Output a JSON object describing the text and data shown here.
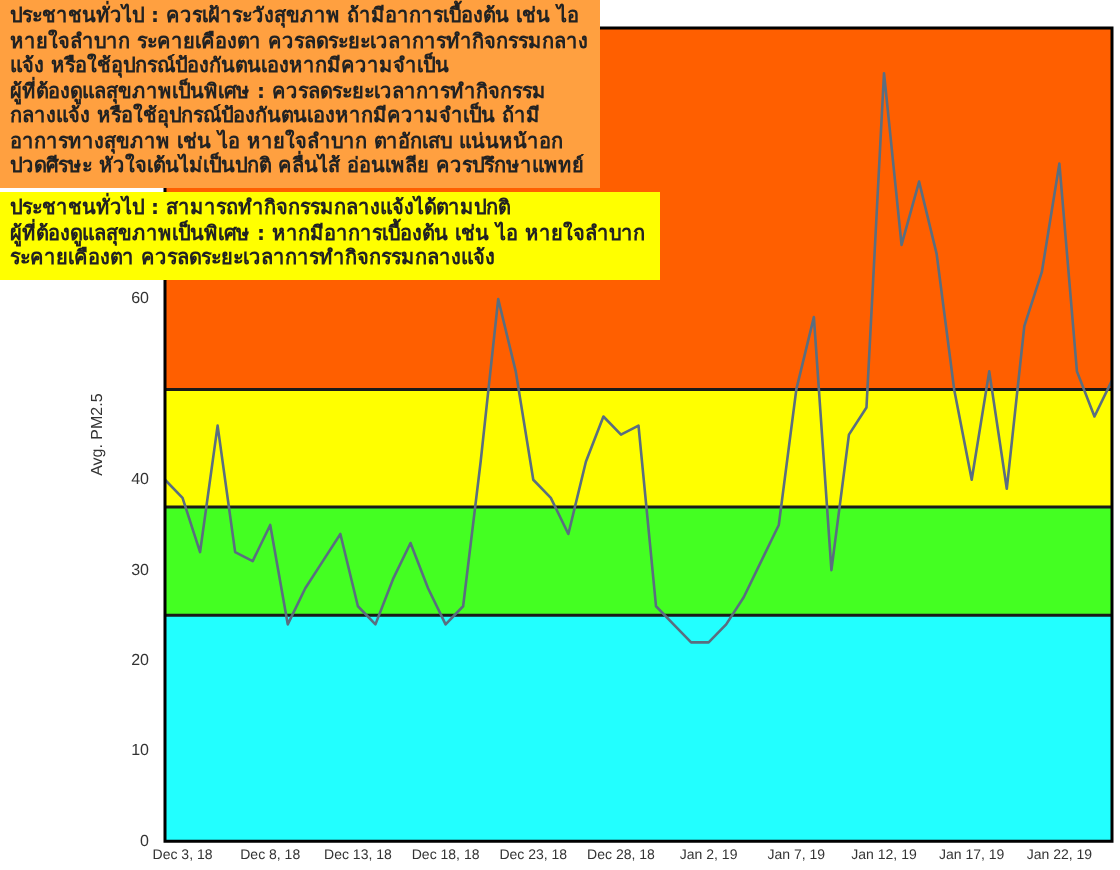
{
  "chart_data": {
    "type": "line",
    "ylabel": "Avg. PM2.5",
    "categories": [
      null,
      "Dec 3, 18",
      null,
      null,
      null,
      null,
      "Dec 8, 18",
      null,
      null,
      null,
      null,
      "Dec 13, 18",
      null,
      null,
      null,
      null,
      "Dec 18, 18",
      null,
      null,
      null,
      null,
      "Dec 23, 18",
      null,
      null,
      null,
      null,
      "Dec 28, 18",
      null,
      null,
      null,
      null,
      "Jan 2, 19",
      null,
      null,
      null,
      null,
      "Jan 7, 19",
      null,
      null,
      null,
      null,
      "Jan 12, 19",
      null,
      null,
      null,
      null,
      "Jan 17, 19",
      null,
      null,
      null,
      null,
      "Jan 22, 19",
      null,
      null,
      null
    ],
    "series": [
      {
        "color": "#5a6e80",
        "values": [
          40,
          38,
          32,
          46,
          32,
          31,
          35,
          24,
          28,
          31,
          34,
          26,
          24,
          29,
          33,
          28,
          24,
          26,
          42,
          60,
          52,
          40,
          38,
          34,
          42,
          47,
          45,
          46,
          26,
          24,
          22,
          22,
          24,
          27,
          31,
          35,
          50,
          58,
          30,
          45,
          48,
          85,
          66,
          73,
          65,
          50,
          40,
          52,
          39,
          57,
          63,
          75,
          52,
          47,
          51
        ]
      }
    ],
    "ylim": [
      0,
      90
    ],
    "yticks": [
      0,
      10,
      20,
      30,
      40,
      60
    ],
    "bands": [
      {
        "axis": "y",
        "from": 0,
        "to": 25,
        "color": "#22ffff"
      },
      {
        "axis": "y",
        "from": 25,
        "to": 37,
        "color": "#44ff22"
      },
      {
        "axis": "y",
        "from": 37,
        "to": 50,
        "color": "#ffff00"
      },
      {
        "axis": "y",
        "from": 50,
        "to": 90,
        "color": "#ff5f00"
      }
    ],
    "ref_lines": [
      {
        "axis": "y",
        "value": 25,
        "color": "#1a1a1a"
      },
      {
        "axis": "y",
        "value": 37,
        "color": "#1a1a1a"
      },
      {
        "axis": "y",
        "value": 50,
        "color": "#1a1a1a"
      }
    ],
    "annotations": [
      "ประชาชนทั่วไป : ควรเฝ้าระวังสุขภาพ ถ้ามีอาการเบื้องต้น เช่น ไอ หายใจลำบาก ระคายเคืองตา ควรลดระยะเวลาการทำกิจกรรมกลางแจ้ง หรือใช้อุปกรณ์ป้องกันตนเองหากมีความจำเป็น",
      "ผู้ที่ต้องดูแลสุขภาพเป็นพิเศษ : ควรลดระยะเวลาการทำกิจกรรมกลางแจ้ง หรือใช้อุปกรณ์ป้องกันตนเองหากมีความจำเป็น ถ้ามีอาการทางสุขภาพ เช่น ไอ หายใจลำบาก ตาอักเสบ แน่นหน้าอก ปวดศีรษะ หัวใจเต้นไม่เป็นปกติ คลื่นไส้ อ่อนเพลีย ควรปรึกษาแพทย์",
      "ประชาชนทั่วไป : สามารถทำกิจกรรมกลางแจ้งได้ตามปกติ",
      "ผู้ที่ต้องดูแลสุขภาพเป็นพิเศษ : หากมีอาการเบื้องต้น เช่น ไอ หายใจลำบาก ระคายเคืองตา ควรลดระยะเวลาการทำกิจกรรมกลางแจ้ง"
    ],
    "grid": false,
    "legend": false,
    "marker": "none",
    "line_style": "solid"
  }
}
